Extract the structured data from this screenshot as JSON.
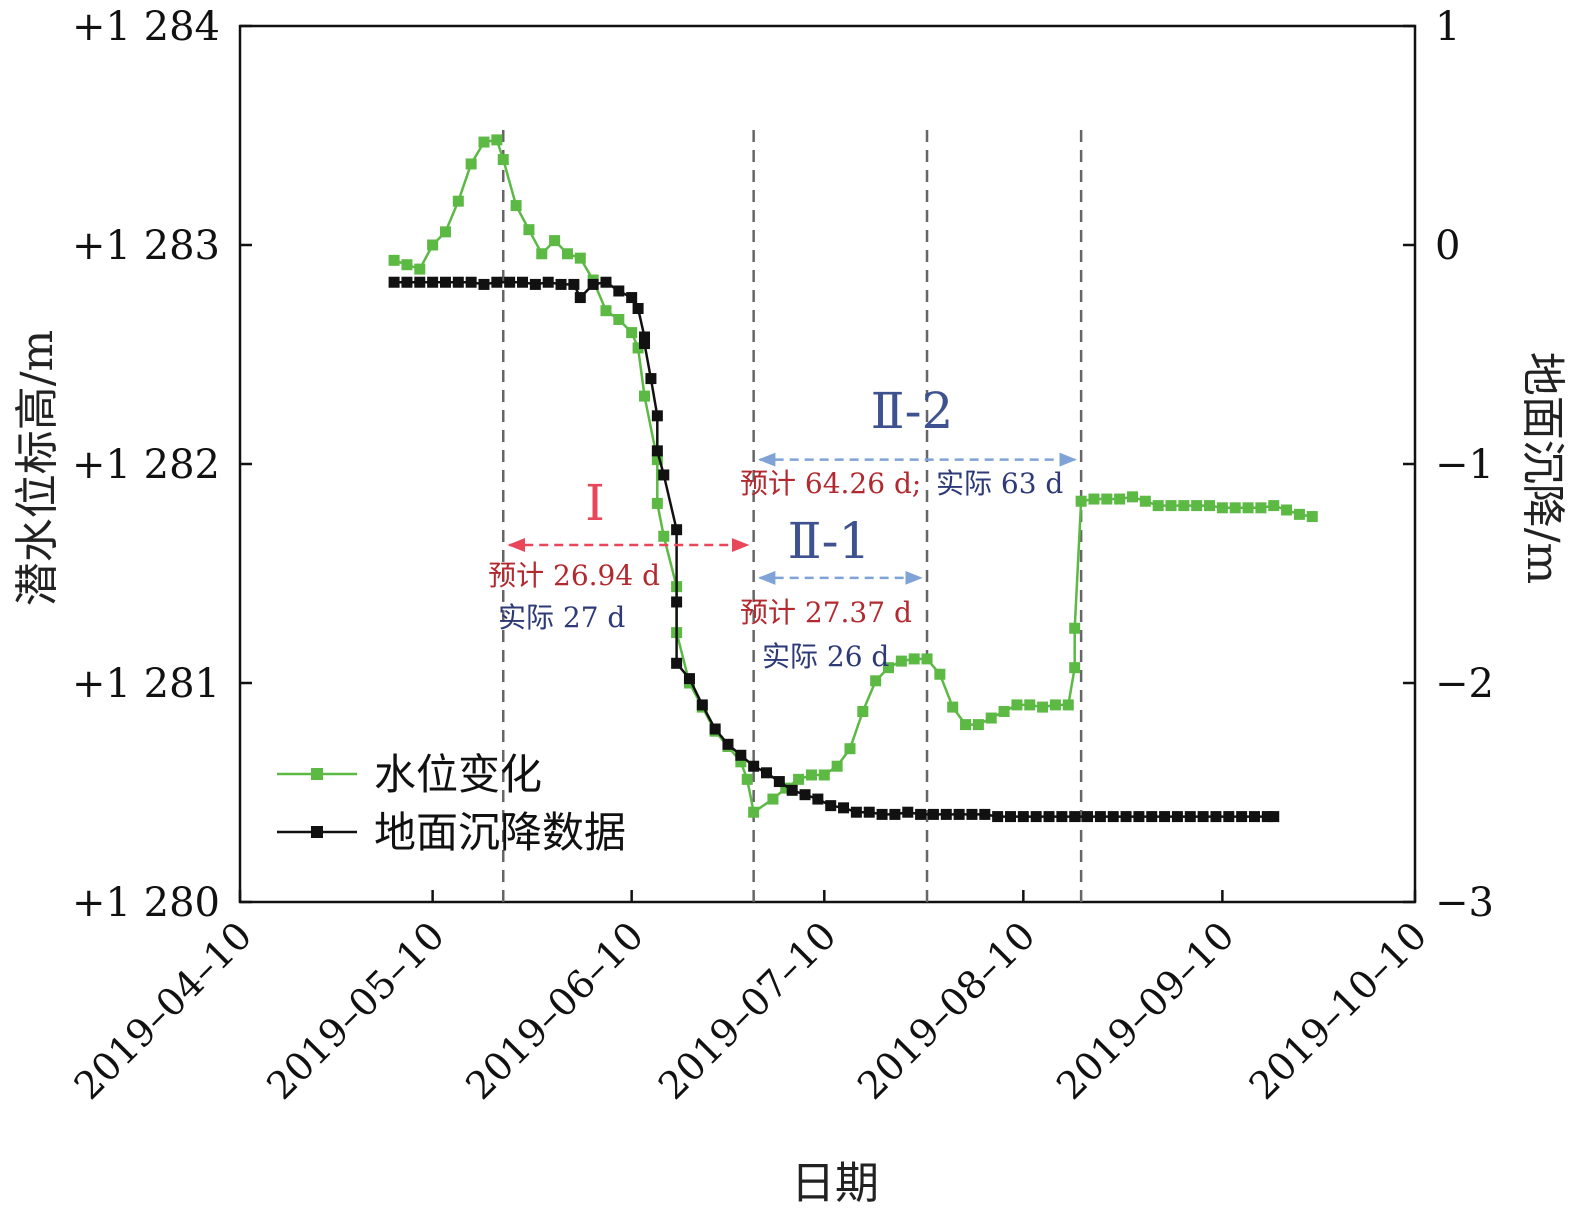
{
  "chart_data": {
    "type": "line",
    "xlabel": "日期",
    "ylabel_left": "潜水位标高/m",
    "ylabel_right": "地面沉降/m",
    "x_ticks": [
      "2019–04–10",
      "2019–05–10",
      "2019–06–10",
      "2019–07–10",
      "2019–08–10",
      "2019–09–10",
      "2019–10–10"
    ],
    "x_tick_dates": [
      "2019-04-10",
      "2019-05-10",
      "2019-06-10",
      "2019-07-10",
      "2019-08-10",
      "2019-09-10",
      "2019-10-10"
    ],
    "xlim": [
      "2019-04-10",
      "2019-10-10"
    ],
    "y_left_ticks": [
      "+1 280",
      "+1 281",
      "+1 282",
      "+1 283",
      "+1 284"
    ],
    "y_left_values": [
      1280,
      1281,
      1282,
      1283,
      1284
    ],
    "ylim_left": [
      1280,
      1284
    ],
    "y_right_ticks": [
      "−3",
      "−2",
      "−1",
      "0",
      "1"
    ],
    "y_right_values": [
      -3,
      -2,
      -1,
      0,
      1
    ],
    "ylim_right": [
      -3,
      1
    ],
    "legend_position": "lower-left",
    "series": [
      {
        "name": "水位变化",
        "axis": "left",
        "color": "#5bb944",
        "points": [
          [
            "2019-05-04",
            1282.93
          ],
          [
            "2019-05-06",
            1282.91
          ],
          [
            "2019-05-08",
            1282.89
          ],
          [
            "2019-05-10",
            1283.0
          ],
          [
            "2019-05-12",
            1283.06
          ],
          [
            "2019-05-14",
            1283.2
          ],
          [
            "2019-05-16",
            1283.37
          ],
          [
            "2019-05-18",
            1283.47
          ],
          [
            "2019-05-20",
            1283.48
          ],
          [
            "2019-05-21",
            1283.39
          ],
          [
            "2019-05-23",
            1283.18
          ],
          [
            "2019-05-25",
            1283.07
          ],
          [
            "2019-05-27",
            1282.96
          ],
          [
            "2019-05-29",
            1283.02
          ],
          [
            "2019-05-31",
            1282.96
          ],
          [
            "2019-06-02",
            1282.94
          ],
          [
            "2019-06-04",
            1282.84
          ],
          [
            "2019-06-06",
            1282.7
          ],
          [
            "2019-06-08",
            1282.66
          ],
          [
            "2019-06-10",
            1282.6
          ],
          [
            "2019-06-11",
            1282.53
          ],
          [
            "2019-06-12",
            1282.31
          ],
          [
            "2019-06-14",
            1282.02
          ],
          [
            "2019-06-14",
            1281.82
          ],
          [
            "2019-06-15",
            1281.67
          ],
          [
            "2019-06-17",
            1281.44
          ],
          [
            "2019-06-17",
            1281.23
          ],
          [
            "2019-06-19",
            1281.0
          ],
          [
            "2019-06-21",
            1280.89
          ],
          [
            "2019-06-23",
            1280.78
          ],
          [
            "2019-06-25",
            1280.71
          ],
          [
            "2019-06-27",
            1280.64
          ],
          [
            "2019-06-28",
            1280.56
          ],
          [
            "2019-06-29",
            1280.41
          ],
          [
            "2019-07-02",
            1280.47
          ],
          [
            "2019-07-04",
            1280.52
          ],
          [
            "2019-07-06",
            1280.56
          ],
          [
            "2019-07-08",
            1280.58
          ],
          [
            "2019-07-10",
            1280.58
          ],
          [
            "2019-07-12",
            1280.62
          ],
          [
            "2019-07-14",
            1280.7
          ],
          [
            "2019-07-16",
            1280.87
          ],
          [
            "2019-07-18",
            1281.01
          ],
          [
            "2019-07-20",
            1281.07
          ],
          [
            "2019-07-22",
            1281.1
          ],
          [
            "2019-07-24",
            1281.11
          ],
          [
            "2019-07-26",
            1281.11
          ],
          [
            "2019-07-28",
            1281.04
          ],
          [
            "2019-07-30",
            1280.89
          ],
          [
            "2019-08-01",
            1280.81
          ],
          [
            "2019-08-03",
            1280.81
          ],
          [
            "2019-08-05",
            1280.84
          ],
          [
            "2019-08-07",
            1280.87
          ],
          [
            "2019-08-09",
            1280.9
          ],
          [
            "2019-08-11",
            1280.9
          ],
          [
            "2019-08-13",
            1280.89
          ],
          [
            "2019-08-15",
            1280.9
          ],
          [
            "2019-08-17",
            1280.9
          ],
          [
            "2019-08-18",
            1281.07
          ],
          [
            "2019-08-18",
            1281.25
          ],
          [
            "2019-08-19",
            1281.83
          ],
          [
            "2019-08-21",
            1281.84
          ],
          [
            "2019-08-23",
            1281.84
          ],
          [
            "2019-08-25",
            1281.84
          ],
          [
            "2019-08-27",
            1281.85
          ],
          [
            "2019-08-29",
            1281.83
          ],
          [
            "2019-08-31",
            1281.81
          ],
          [
            "2019-09-02",
            1281.81
          ],
          [
            "2019-09-04",
            1281.81
          ],
          [
            "2019-09-06",
            1281.81
          ],
          [
            "2019-09-08",
            1281.81
          ],
          [
            "2019-09-10",
            1281.8
          ],
          [
            "2019-09-12",
            1281.8
          ],
          [
            "2019-09-14",
            1281.8
          ],
          [
            "2019-09-16",
            1281.8
          ],
          [
            "2019-09-18",
            1281.81
          ],
          [
            "2019-09-20",
            1281.79
          ],
          [
            "2019-09-22",
            1281.77
          ],
          [
            "2019-09-24",
            1281.76
          ]
        ]
      },
      {
        "name": "地面沉降数据",
        "axis": "right",
        "color": "#111111",
        "points": [
          [
            "2019-05-04",
            -0.17
          ],
          [
            "2019-05-06",
            -0.17
          ],
          [
            "2019-05-08",
            -0.17
          ],
          [
            "2019-05-10",
            -0.17
          ],
          [
            "2019-05-12",
            -0.17
          ],
          [
            "2019-05-14",
            -0.17
          ],
          [
            "2019-05-16",
            -0.17
          ],
          [
            "2019-05-18",
            -0.18
          ],
          [
            "2019-05-20",
            -0.17
          ],
          [
            "2019-05-22",
            -0.17
          ],
          [
            "2019-05-24",
            -0.17
          ],
          [
            "2019-05-26",
            -0.18
          ],
          [
            "2019-05-28",
            -0.17
          ],
          [
            "2019-05-30",
            -0.18
          ],
          [
            "2019-06-01",
            -0.18
          ],
          [
            "2019-06-02",
            -0.24
          ],
          [
            "2019-06-04",
            -0.18
          ],
          [
            "2019-06-06",
            -0.17
          ],
          [
            "2019-06-08",
            -0.21
          ],
          [
            "2019-06-10",
            -0.24
          ],
          [
            "2019-06-11",
            -0.29
          ],
          [
            "2019-06-12",
            -0.42
          ],
          [
            "2019-06-12",
            -0.45
          ],
          [
            "2019-06-13",
            -0.61
          ],
          [
            "2019-06-14",
            -0.78
          ],
          [
            "2019-06-14",
            -0.94
          ],
          [
            "2019-06-15",
            -1.05
          ],
          [
            "2019-06-17",
            -1.3
          ],
          [
            "2019-06-17",
            -1.63
          ],
          [
            "2019-06-17",
            -1.91
          ],
          [
            "2019-06-19",
            -1.98
          ],
          [
            "2019-06-21",
            -2.1
          ],
          [
            "2019-06-23",
            -2.21
          ],
          [
            "2019-06-25",
            -2.28
          ],
          [
            "2019-06-27",
            -2.33
          ],
          [
            "2019-06-29",
            -2.38
          ],
          [
            "2019-07-01",
            -2.41
          ],
          [
            "2019-07-03",
            -2.45
          ],
          [
            "2019-07-05",
            -2.49
          ],
          [
            "2019-07-07",
            -2.51
          ],
          [
            "2019-07-09",
            -2.53
          ],
          [
            "2019-07-11",
            -2.56
          ],
          [
            "2019-07-13",
            -2.57
          ],
          [
            "2019-07-15",
            -2.59
          ],
          [
            "2019-07-17",
            -2.59
          ],
          [
            "2019-07-19",
            -2.6
          ],
          [
            "2019-07-21",
            -2.6
          ],
          [
            "2019-07-23",
            -2.59
          ],
          [
            "2019-07-25",
            -2.6
          ],
          [
            "2019-07-27",
            -2.6
          ],
          [
            "2019-07-29",
            -2.6
          ],
          [
            "2019-07-31",
            -2.6
          ],
          [
            "2019-08-02",
            -2.6
          ],
          [
            "2019-08-04",
            -2.6
          ],
          [
            "2019-08-06",
            -2.61
          ],
          [
            "2019-08-08",
            -2.61
          ],
          [
            "2019-08-10",
            -2.61
          ],
          [
            "2019-08-12",
            -2.61
          ],
          [
            "2019-08-14",
            -2.61
          ],
          [
            "2019-08-16",
            -2.61
          ],
          [
            "2019-08-18",
            -2.61
          ],
          [
            "2019-08-20",
            -2.61
          ],
          [
            "2019-08-22",
            -2.61
          ],
          [
            "2019-08-24",
            -2.61
          ],
          [
            "2019-08-26",
            -2.61
          ],
          [
            "2019-08-28",
            -2.61
          ],
          [
            "2019-08-30",
            -2.61
          ],
          [
            "2019-09-01",
            -2.61
          ],
          [
            "2019-09-03",
            -2.61
          ],
          [
            "2019-09-05",
            -2.61
          ],
          [
            "2019-09-07",
            -2.61
          ],
          [
            "2019-09-09",
            -2.61
          ],
          [
            "2019-09-11",
            -2.61
          ],
          [
            "2019-09-13",
            -2.61
          ],
          [
            "2019-09-15",
            -2.61
          ],
          [
            "2019-09-17",
            -2.61
          ],
          [
            "2019-09-18",
            -2.61
          ]
        ]
      }
    ],
    "vertical_reference_lines": [
      "2019-05-21",
      "2019-06-29",
      "2019-07-26",
      "2019-08-19"
    ],
    "periods": [
      {
        "label": "Ⅰ",
        "color": "#e8475a",
        "start": "2019-05-21",
        "end": "2019-06-29",
        "y": 1281.63,
        "forecast": "预计 26.94 d",
        "actual": "实际 27 d"
      },
      {
        "label": "Ⅱ-1",
        "color": "#7fa3d6",
        "start": "2019-06-29",
        "end": "2019-07-26",
        "y": 1281.48,
        "forecast": "预计 27.37 d",
        "actual": "实际 26 d"
      },
      {
        "label": "Ⅱ-2",
        "color": "#7fa3d6",
        "start": "2019-06-29",
        "end": "2019-08-19",
        "y": 1282.02,
        "forecast": "预计 64.26 d;",
        "actual": "实际 63 d"
      }
    ]
  }
}
